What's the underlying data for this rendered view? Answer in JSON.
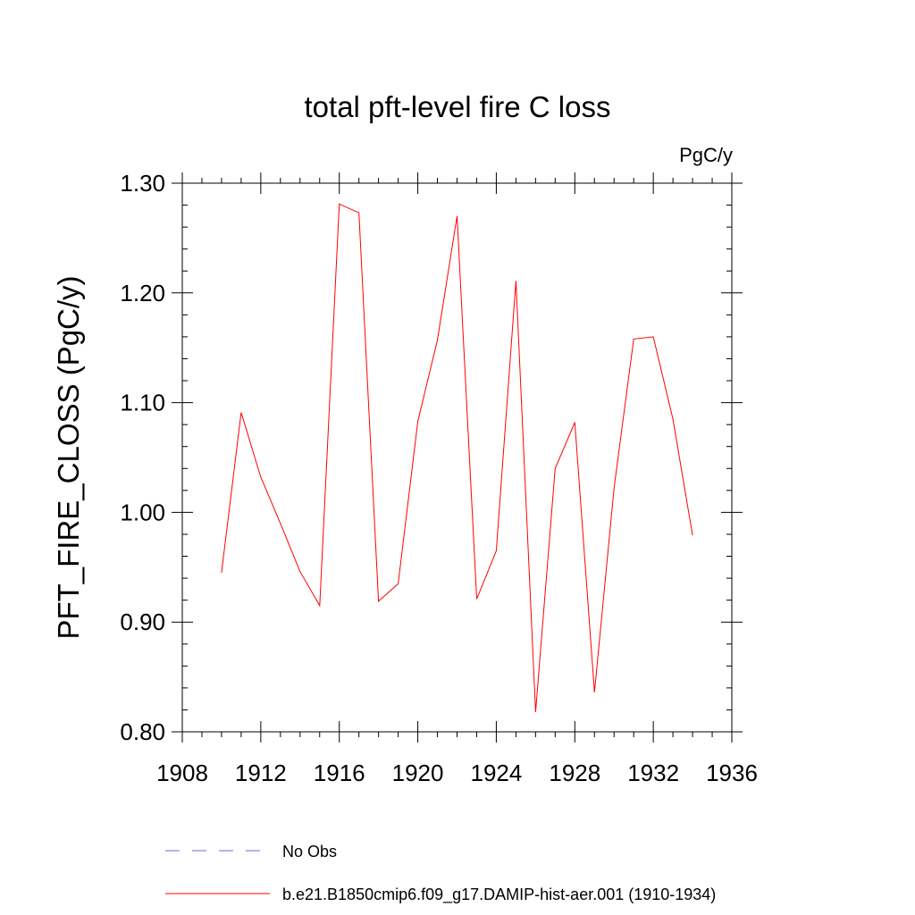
{
  "chart_data": {
    "type": "line",
    "title": "total pft-level fire C loss",
    "units_label": "PgC/y",
    "ylabel": "PFT_FIRE_CLOSS  (PgC/y)",
    "xlabel": "",
    "xlim": [
      1908,
      1936
    ],
    "ylim": [
      0.8,
      1.3
    ],
    "x_ticks": [
      1908,
      1912,
      1916,
      1920,
      1924,
      1928,
      1932,
      1936
    ],
    "x_tick_labels": [
      "1908",
      "1912",
      "1916",
      "1920",
      "1924",
      "1928",
      "1932",
      "1936"
    ],
    "y_ticks": [
      0.8,
      0.9,
      1.0,
      1.1,
      1.2,
      1.3
    ],
    "y_tick_labels": [
      "0.80",
      "0.90",
      "1.00",
      "1.10",
      "1.20",
      "1.30"
    ],
    "grid": false,
    "legend_placement": "bottom",
    "series": [
      {
        "name": "b.e21.B1850cmip6.f09_g17.DAMIP-hist-aer.001 (1910-1934)",
        "color": "#ff0000",
        "line_style": "solid",
        "x": [
          1910,
          1911,
          1912,
          1913,
          1914,
          1915,
          1916,
          1917,
          1918,
          1919,
          1920,
          1921,
          1922,
          1923,
          1924,
          1925,
          1926,
          1927,
          1928,
          1929,
          1930,
          1931,
          1932,
          1933,
          1934
        ],
        "y": [
          0.945,
          1.091,
          1.032,
          0.99,
          0.946,
          0.915,
          1.281,
          1.273,
          0.919,
          0.935,
          1.083,
          1.157,
          1.27,
          0.921,
          0.965,
          1.211,
          0.818,
          1.04,
          1.082,
          0.836,
          1.022,
          1.158,
          1.16,
          1.085,
          0.979
        ]
      }
    ],
    "legend": [
      {
        "label": "No Obs",
        "color": "#6a6ad0",
        "line_style": "dashed"
      },
      {
        "label": "b.e21.B1850cmip6.f09_g17.DAMIP-hist-aer.001 (1910-1934)",
        "color": "#ff0000",
        "line_style": "solid"
      }
    ]
  }
}
